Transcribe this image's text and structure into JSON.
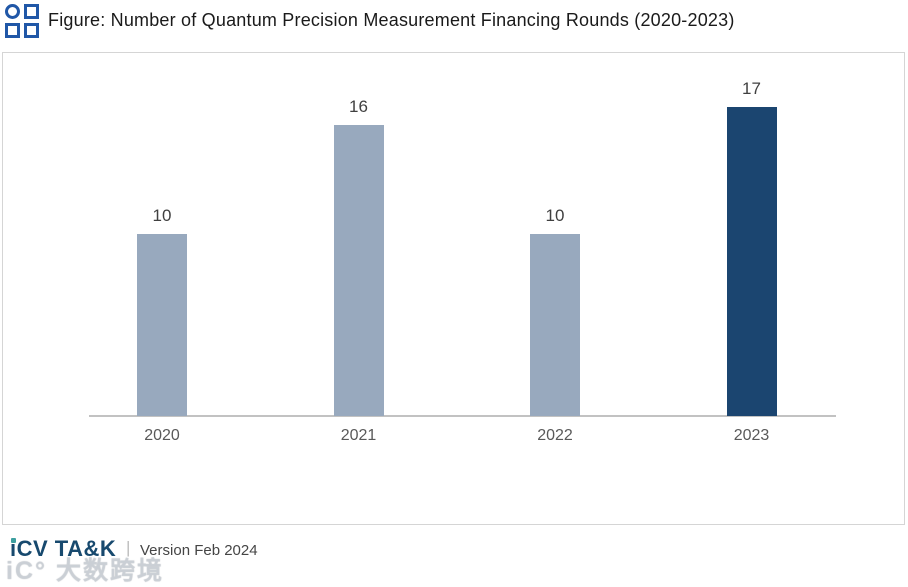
{
  "header": {
    "title": "Figure: Number of Quantum Precision Measurement Financing Rounds (2020-2023)"
  },
  "chart_data": {
    "type": "bar",
    "title": "Number of Quantum Precision Measurement Financing Rounds (2020-2023)",
    "categories": [
      "2020",
      "2021",
      "2022",
      "2023"
    ],
    "values": [
      10,
      16,
      10,
      17
    ],
    "bar_colors": [
      "#98a9be",
      "#98a9be",
      "#98a9be",
      "#1b4570"
    ],
    "highlight_index": 3,
    "xlabel": "",
    "ylabel": "",
    "ylim": [
      0,
      20
    ],
    "grid": false,
    "legend": false,
    "y_axis_visible": false,
    "data_labels_visible": true
  },
  "footer": {
    "logo_i": "i",
    "logo_rest": "CV TA&K",
    "separator": "|",
    "version": "Version Feb 2024"
  },
  "watermark": {
    "text": "iC° 大数跨境"
  },
  "colors": {
    "header_icon_blue": "#2057a7",
    "light_bar": "#98a9be",
    "dark_bar": "#1b4570",
    "axis_line": "#c2c2c2",
    "logo_navy": "#17496e",
    "logo_dot_teal": "#3d9fa0"
  }
}
